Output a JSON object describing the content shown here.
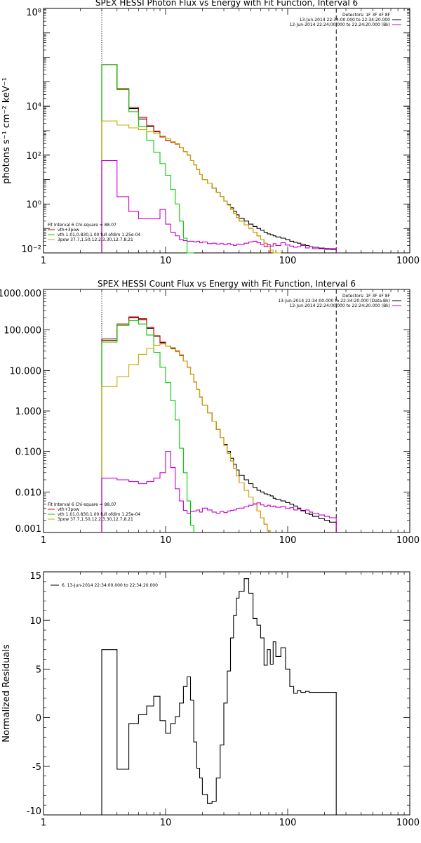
{
  "figure": {
    "panels": [
      {
        "id": "photon",
        "title": "SPEX HESSI Photon Flux vs Energy with Fit Function, Interval 6",
        "ylabel": "photons s⁻¹ cm⁻² keV⁻¹",
        "xlabel": "",
        "xlim": [
          1,
          1000
        ],
        "ylim": [
          0.01,
          100000000
        ],
        "yscale": "log",
        "xticks": [
          {
            "v": 1,
            "label": "1"
          },
          {
            "v": 10,
            "label": "10"
          },
          {
            "v": 100,
            "label": "100"
          },
          {
            "v": 1000,
            "label": "1000"
          }
        ],
        "yticks": [
          {
            "v": 0.01,
            "label": "10⁻²"
          },
          {
            "v": 1,
            "label": "10⁰"
          },
          {
            "v": 100,
            "label": "10²"
          },
          {
            "v": 10000,
            "label": "10⁴"
          },
          {
            "v": 100000000,
            "label": "10⁸"
          }
        ],
        "vlines": [
          {
            "x": 3,
            "style": "dotted",
            "color": "#000000"
          },
          {
            "x": 250,
            "style": "dashed",
            "color": "#000000"
          }
        ],
        "legend_top": [
          {
            "text": "Detectors: 1F 3F 4F 8F",
            "color": "",
            "line": false
          },
          {
            "text": "13-Jun-2014 22:34:00.000 to 22:34:20.000",
            "color": "#000000",
            "line": true
          },
          {
            "text": "12-Jun-2014 22:24:00.000 to 22:24:20.000 (Bk)",
            "color": "#cc00cc",
            "line": true
          }
        ],
        "legend_bottom": [
          {
            "text": "Fit Interval 6   Chi-square = 88.07",
            "color": "",
            "line": false
          },
          {
            "text": "vth+3pow",
            "color": "#e00000",
            "line": true
          },
          {
            "text": "vth 1.01,0.830,1.00  full ofdim 1.25e-04",
            "color": "#00cc00",
            "line": true
          },
          {
            "text": "3pow 37.7,1.50,12.2,3.30,12.7,8.21",
            "color": "#ccaa00",
            "line": true
          }
        ]
      },
      {
        "id": "count",
        "title": "SPEX HESSI Count Flux vs Energy with Fit Function, Interval 6",
        "ylabel": "",
        "xlabel": "",
        "xlim": [
          1,
          1000
        ],
        "ylim": [
          0.001,
          1000
        ],
        "yscale": "log",
        "xticks": [
          {
            "v": 1,
            "label": "1"
          },
          {
            "v": 10,
            "label": "10"
          },
          {
            "v": 100,
            "label": "100"
          },
          {
            "v": 1000,
            "label": "1000"
          }
        ],
        "yticks": [
          {
            "v": 0.001,
            "label": "0.001"
          },
          {
            "v": 0.01,
            "label": "0.010"
          },
          {
            "v": 0.1,
            "label": "0.100"
          },
          {
            "v": 1,
            "label": "1.000"
          },
          {
            "v": 10,
            "label": "10.000"
          },
          {
            "v": 100,
            "label": "100.000"
          },
          {
            "v": 1000,
            "label": "1000.000"
          }
        ],
        "vlines": [
          {
            "x": 3,
            "style": "dotted",
            "color": "#000000"
          },
          {
            "x": 250,
            "style": "dashed",
            "color": "#000000"
          }
        ],
        "legend_top": [
          {
            "text": "Detectors: 1F 3F 4F 8F",
            "color": "",
            "line": false
          },
          {
            "text": "13-Jun-2014 22:34:00.000 to 22:34:20.000 (Data-Bk)",
            "color": "#000000",
            "line": true
          },
          {
            "text": "12-Jun-2014 22:24:00.000 to 22:24:20.000 (Bk)",
            "color": "#cc00cc",
            "line": true
          }
        ],
        "legend_bottom": [
          {
            "text": "Fit Interval 6   Chi-square = 88.07",
            "color": "",
            "line": false
          },
          {
            "text": "vth+3pow",
            "color": "#e00000",
            "line": true
          },
          {
            "text": "vth 1.01,0.830,1.00  full ofdim 1.25e-04",
            "color": "#00cc00",
            "line": true
          },
          {
            "text": "3pow 37.7,1.50,12.2,3.30,12.7,8.21",
            "color": "#ccaa00",
            "line": true
          }
        ]
      },
      {
        "id": "resid",
        "title": "",
        "ylabel": "Normalized Residuals",
        "xlabel": "",
        "xlim": [
          1,
          1000
        ],
        "ylim": [
          -10,
          15
        ],
        "yscale": "linear",
        "xticks": [
          {
            "v": 1,
            "label": "1"
          },
          {
            "v": 10,
            "label": "10"
          },
          {
            "v": 100,
            "label": "100"
          },
          {
            "v": 1000,
            "label": "1000"
          }
        ],
        "yticks": [
          {
            "v": -10,
            "label": "-10"
          },
          {
            "v": -5,
            "label": "-5"
          },
          {
            "v": 0,
            "label": "0"
          },
          {
            "v": 5,
            "label": "5"
          },
          {
            "v": 10,
            "label": "10"
          },
          {
            "v": 15,
            "label": "15"
          }
        ],
        "vlines": [],
        "legend_top": [
          {
            "text": "6. 13-Jun-2014 22:34:00.000 to 22:34:20.000",
            "color": "#000000",
            "line": true
          }
        ],
        "legend_bottom": []
      }
    ]
  },
  "chart_data": [
    {
      "type": "line",
      "title": "SPEX HESSI Photon Flux vs Energy with Fit Function, Interval 6",
      "xlabel": "",
      "ylabel": "photons s⁻¹ cm⁻² keV⁻¹",
      "x_scale": "log",
      "y_scale": "log",
      "xlim": [
        1,
        1000
      ],
      "ylim": [
        0.01,
        100000000
      ],
      "grid": false,
      "legend_placement": "top-right and bottom-left",
      "step": true,
      "edges": [
        3,
        4,
        5,
        6,
        7,
        8,
        9,
        10,
        11,
        12,
        13,
        14,
        15,
        16,
        17,
        18,
        19,
        20,
        22,
        24,
        26,
        28,
        30,
        32,
        34,
        36,
        38,
        40,
        44,
        48,
        52,
        56,
        60,
        64,
        68,
        72,
        76,
        80,
        88,
        96,
        104,
        112,
        120,
        128,
        140,
        150,
        160,
        180,
        200,
        220,
        250
      ],
      "series": [
        {
          "name": "13-Jun-2014 22:34:00.000 to 22:34:20.000",
          "color": "#000000",
          "values": [
            500000,
            50000,
            8000,
            3000,
            1500,
            900,
            550,
            400,
            350,
            290,
            200,
            140,
            100,
            60,
            40,
            26,
            16,
            10,
            7,
            4.5,
            3,
            2,
            1.3,
            0.95,
            0.7,
            0.5,
            0.36,
            0.26,
            0.2,
            0.15,
            0.12,
            0.1,
            0.085,
            0.07,
            0.06,
            0.055,
            0.05,
            0.045,
            0.04,
            0.035,
            0.03,
            0.027,
            0.025,
            0.022,
            0.02,
            0.018,
            0.017,
            0.015,
            0.015,
            0.014
          ]
        },
        {
          "name": "vth+3pow",
          "color": "#e00000",
          "values": [
            510000,
            52000,
            9000,
            3500,
            1600,
            950,
            560,
            400,
            330,
            280,
            200,
            140,
            100,
            60,
            40,
            26,
            16,
            10,
            7,
            4.5,
            3,
            2,
            1.3,
            0.9,
            0.6,
            0.4,
            0.28,
            0.2,
            0.14,
            0.1,
            0.07,
            0.05,
            0.035,
            0.025,
            0.018
          ]
        },
        {
          "name": "vth 1.01,0.830,1.00  full ofdim 1.25e-04",
          "color": "#00cc00",
          "values": [
            500000,
            48000,
            6000,
            1500,
            400,
            130,
            45,
            15,
            4,
            1,
            0.2,
            0.04,
            0.01,
            0.002
          ]
        },
        {
          "name": "3pow 37.7,1.50,12.2,3.30,12.7,8.21",
          "color": "#ccaa00",
          "values": [
            2500,
            1700,
            1300,
            1100,
            900,
            750,
            600,
            480,
            350,
            290,
            200,
            140,
            100,
            60,
            40,
            26,
            16,
            10,
            7,
            4.5,
            3,
            2,
            1.3,
            0.9,
            0.6,
            0.4,
            0.28,
            0.2,
            0.14,
            0.1,
            0.07,
            0.05,
            0.035,
            0.025,
            0.018,
            0.013,
            0.01,
            0.008
          ]
        },
        {
          "name": "12-Jun-2014 22:24:00.000 to 22:24:20.000 (Bk)",
          "color": "#cc00cc",
          "values": [
            60,
            2,
            0.5,
            0.25,
            0.25,
            0.25,
            0.6,
            0.15,
            0.07,
            0.05,
            0.035,
            0.032,
            0.03,
            0.03,
            0.028,
            0.03,
            0.026,
            0.028,
            0.024,
            0.025,
            0.023,
            0.024,
            0.022,
            0.024,
            0.022,
            0.02,
            0.023,
            0.022,
            0.025,
            0.028,
            0.03,
            0.026,
            0.022,
            0.018,
            0.022,
            0.019,
            0.024,
            0.02,
            0.026,
            0.021,
            0.019,
            0.017,
            0.018,
            0.02,
            0.016,
            0.018,
            0.015,
            0.016,
            0.014,
            0.015
          ]
        }
      ],
      "annotations": [
        "Detectors: 1F 3F 4F 8F",
        "Fit Interval 6   Chi-square = 88.07"
      ]
    },
    {
      "type": "line",
      "title": "SPEX HESSI Count Flux vs Energy with Fit Function, Interval 6",
      "xlabel": "",
      "ylabel": "",
      "x_scale": "log",
      "y_scale": "log",
      "xlim": [
        1,
        1000
      ],
      "ylim": [
        0.001,
        1000
      ],
      "grid": false,
      "legend_placement": "top-right and bottom-left",
      "step": true,
      "edges": [
        3,
        4,
        5,
        6,
        7,
        8,
        9,
        10,
        11,
        12,
        13,
        14,
        15,
        16,
        17,
        18,
        19,
        20,
        22,
        24,
        26,
        28,
        30,
        32,
        34,
        36,
        38,
        40,
        44,
        48,
        52,
        56,
        60,
        64,
        68,
        72,
        76,
        80,
        88,
        96,
        104,
        112,
        120,
        128,
        140,
        150,
        160,
        180,
        200,
        220,
        250
      ],
      "series": [
        {
          "name": "13-Jun-2014 22:34:00.000 to 22:34:20.000 (Data-Bk)",
          "color": "#000000",
          "values": [
            60,
            130,
            200,
            180,
            110,
            70,
            48,
            40,
            36,
            30,
            24,
            17,
            12,
            8,
            5.2,
            3.4,
            2.2,
            1.4,
            0.9,
            0.55,
            0.35,
            0.22,
            0.15,
            0.1,
            0.068,
            0.048,
            0.035,
            0.026,
            0.02,
            0.016,
            0.013,
            0.011,
            0.01,
            0.009,
            0.0085,
            0.008,
            0.007,
            0.0065,
            0.006,
            0.0055,
            0.005,
            0.0045,
            0.004,
            0.0035,
            0.003,
            0.0028,
            0.0025,
            0.0022,
            0.002,
            0.0018
          ]
        },
        {
          "name": "vth+3pow",
          "color": "#e00000",
          "values": [
            55,
            140,
            210,
            190,
            115,
            72,
            50,
            40,
            35,
            30,
            24,
            17,
            12,
            8,
            5.2,
            3.4,
            2.2,
            1.4,
            0.9,
            0.55,
            0.35,
            0.22,
            0.14,
            0.09,
            0.058,
            0.038,
            0.025,
            0.017,
            0.011,
            0.0075,
            0.005,
            0.0034,
            0.0023,
            0.0016,
            0.0011
          ]
        },
        {
          "name": "vth 1.01,0.830,1.00  full ofdim 1.25e-04",
          "color": "#00cc00",
          "values": [
            50,
            130,
            170,
            140,
            75,
            28,
            12,
            5,
            1.8,
            0.6,
            0.12,
            0.03,
            0.006,
            0.0015
          ]
        },
        {
          "name": "3pow 37.7,1.50,12.2,3.30,12.7,8.21",
          "color": "#ccaa00",
          "values": [
            4,
            7,
            14,
            25,
            35,
            42,
            45,
            40,
            34,
            29,
            23,
            17,
            12,
            8,
            5.2,
            3.4,
            2.2,
            1.4,
            0.9,
            0.55,
            0.35,
            0.22,
            0.14,
            0.09,
            0.058,
            0.038,
            0.025,
            0.017,
            0.011,
            0.0075,
            0.005,
            0.0034,
            0.0023,
            0.0016,
            0.0011
          ]
        },
        {
          "name": "12-Jun-2014 22:24:00.000 to 22:24:20.000 (Bk)",
          "color": "#cc00cc",
          "values": [
            0.022,
            0.02,
            0.018,
            0.016,
            0.018,
            0.022,
            0.03,
            0.1,
            0.04,
            0.012,
            0.006,
            0.0035,
            0.003,
            0.0033,
            0.0034,
            0.0036,
            0.0032,
            0.004,
            0.0036,
            0.0032,
            0.003,
            0.0033,
            0.0031,
            0.0034,
            0.0035,
            0.0036,
            0.0039,
            0.004,
            0.0043,
            0.0047,
            0.0051,
            0.0054,
            0.0048,
            0.0044,
            0.0047,
            0.0043,
            0.0045,
            0.0042,
            0.0044,
            0.0039,
            0.0041,
            0.0036,
            0.0038,
            0.0034,
            0.0036,
            0.0032,
            0.003,
            0.0027,
            0.0025,
            0.0023
          ]
        }
      ],
      "annotations": [
        "Detectors: 1F 3F 4F 8F",
        "Fit Interval 6   Chi-square = 88.07"
      ]
    },
    {
      "type": "line",
      "title": "",
      "xlabel": "",
      "ylabel": "Normalized Residuals",
      "x_scale": "log",
      "y_scale": "linear",
      "xlim": [
        1,
        1000
      ],
      "ylim": [
        -10,
        15
      ],
      "grid": false,
      "legend_placement": "top-left",
      "step": true,
      "edges": [
        3,
        4,
        5,
        6,
        7,
        8,
        9,
        10,
        11,
        12,
        13,
        14,
        15,
        16,
        17,
        18,
        19,
        20,
        22,
        24,
        26,
        28,
        30,
        32,
        34,
        36,
        38,
        40,
        44,
        48,
        52,
        56,
        60,
        64,
        68,
        72,
        76,
        80,
        88,
        96,
        104,
        112,
        120,
        128,
        140,
        150,
        160,
        180,
        200,
        220,
        250
      ],
      "series": [
        {
          "name": "6. 13-Jun-2014 22:34:00.000 to 22:34:20.000",
          "color": "#000000",
          "values": [
            7,
            -5.3,
            -0.6,
            0.3,
            1.2,
            2.2,
            -0.3,
            -1.6,
            -0.6,
            0.1,
            1.5,
            3.2,
            4.2,
            1.8,
            -2.5,
            -5.2,
            -6.2,
            -7.9,
            -8.8,
            -8.6,
            -6.2,
            -2.8,
            1.5,
            4.8,
            8.2,
            10.5,
            12.3,
            13.0,
            14.3,
            12.8,
            10.2,
            9.5,
            8.2,
            5.4,
            7.0,
            5.5,
            7.8,
            6.3,
            7.2,
            5.0,
            3.2,
            2.5,
            2.8,
            2.6,
            2.7,
            2.6,
            2.6,
            2.6,
            2.6,
            2.6
          ]
        }
      ],
      "annotations": []
    }
  ]
}
